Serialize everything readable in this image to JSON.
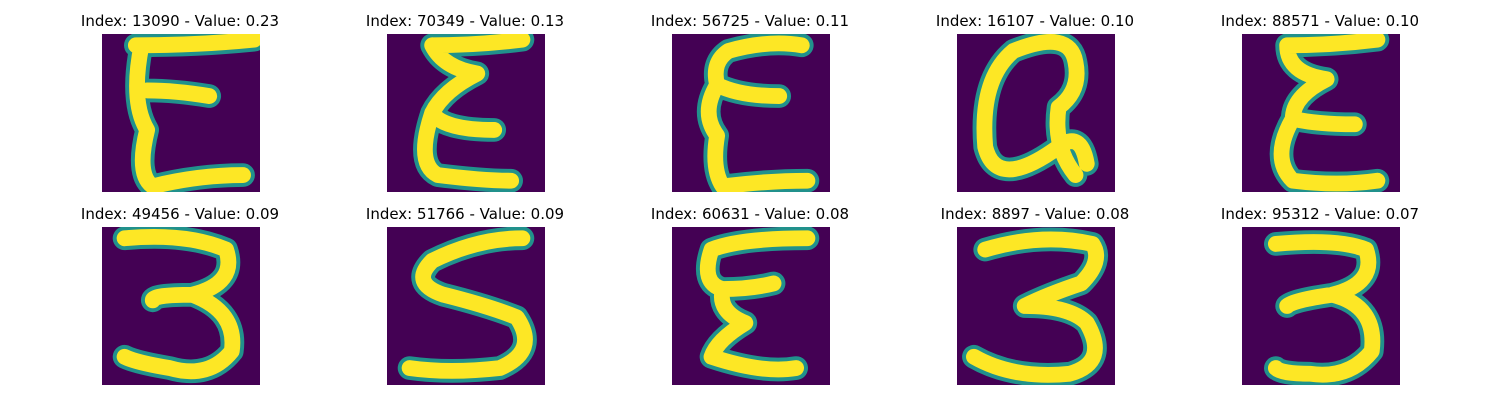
{
  "palette": {
    "background": "#440154",
    "edge": "#21918c",
    "stroke": "#fde725"
  },
  "cells": [
    {
      "title": "Index: 13090 - Value: 0.23",
      "glyph": "E"
    },
    {
      "title": "Index: 70349 - Value: 0.13",
      "glyph": "E"
    },
    {
      "title": "Index: 56725 - Value: 0.11",
      "glyph": "E"
    },
    {
      "title": "Index: 16107 - Value: 0.10",
      "glyph": "a"
    },
    {
      "title": "Index: 88571 - Value: 0.10",
      "glyph": "E"
    },
    {
      "title": "Index: 49456 - Value: 0.09",
      "glyph": "3"
    },
    {
      "title": "Index: 51766 - Value: 0.09",
      "glyph": "S"
    },
    {
      "title": "Index: 60631 - Value: 0.08",
      "glyph": "E"
    },
    {
      "title": "Index: 8897 - Value: 0.08",
      "glyph": "3"
    },
    {
      "title": "Index: 95312 - Value: 0.07",
      "glyph": "3"
    }
  ]
}
